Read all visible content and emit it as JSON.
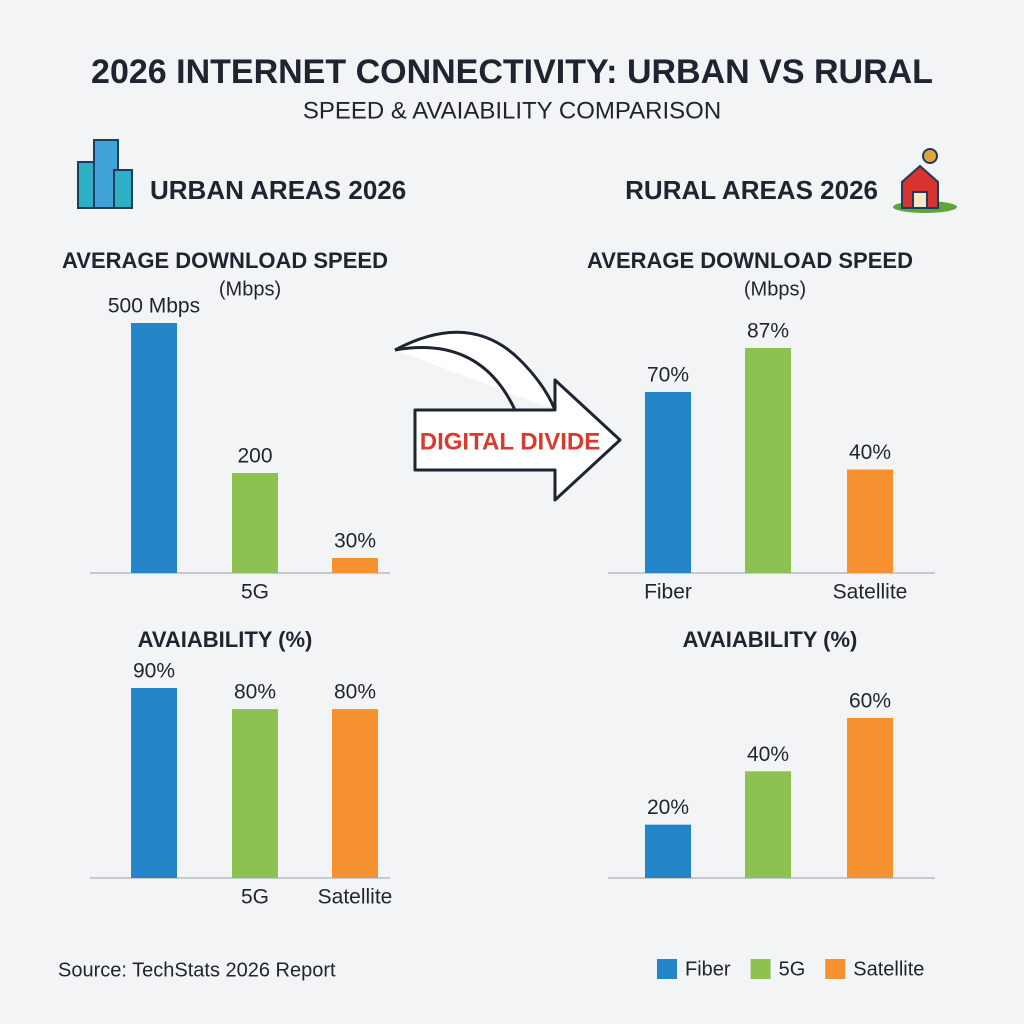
{
  "title": "2026 INTERNET CONNECTIVITY: URBAN VS RURAL",
  "subtitle": "SPEED & AVAIABILITY COMPARISON",
  "sections": [
    "URBAN AREAS 2026",
    "RURAL AREAS 2026"
  ],
  "annotation": "DIGITAL DIVIDE",
  "source": "Source: TechStats 2026 Report",
  "legend": [
    {
      "name": "Fiber",
      "color": "#2385c7"
    },
    {
      "name": "5G",
      "color": "#8dc151"
    },
    {
      "name": "Satellite",
      "color": "#f5922f"
    }
  ],
  "chart_data": [
    {
      "type": "bar",
      "title": "AVERAGE DOWNLOAD SPEED",
      "unit": "(Mbps)",
      "categories": [
        null,
        "5G",
        null
      ],
      "values": [
        500,
        200,
        30
      ],
      "value_labels": [
        "500 Mbps",
        "200",
        "30%"
      ],
      "colors": [
        "#2385c7",
        "#8dc151",
        "#f5922f"
      ]
    },
    {
      "type": "bar",
      "title": "AVERAGE DOWNLOAD SPEED",
      "unit": "(Mbps)",
      "categories": [
        "Fiber",
        null,
        "Satellite"
      ],
      "values": [
        70,
        87,
        40
      ],
      "value_labels": [
        "70%",
        "87%",
        "40%"
      ],
      "colors": [
        "#2385c7",
        "#8dc151",
        "#f5922f"
      ]
    },
    {
      "type": "bar",
      "title": "AVAIABILITY (%)",
      "categories": [
        null,
        "5G",
        "Satellite"
      ],
      "values": [
        90,
        80,
        80
      ],
      "value_labels": [
        "90%",
        "80%",
        "80%"
      ],
      "colors": [
        "#2385c7",
        "#8dc151",
        "#f5922f"
      ]
    },
    {
      "type": "bar",
      "title": "AVAIABILITY (%)",
      "categories": [
        null,
        null,
        null
      ],
      "values": [
        20,
        40,
        60
      ],
      "value_labels": [
        "20%",
        "40%",
        "60%"
      ],
      "colors": [
        "#2385c7",
        "#8dc151",
        "#f5922f"
      ]
    }
  ]
}
